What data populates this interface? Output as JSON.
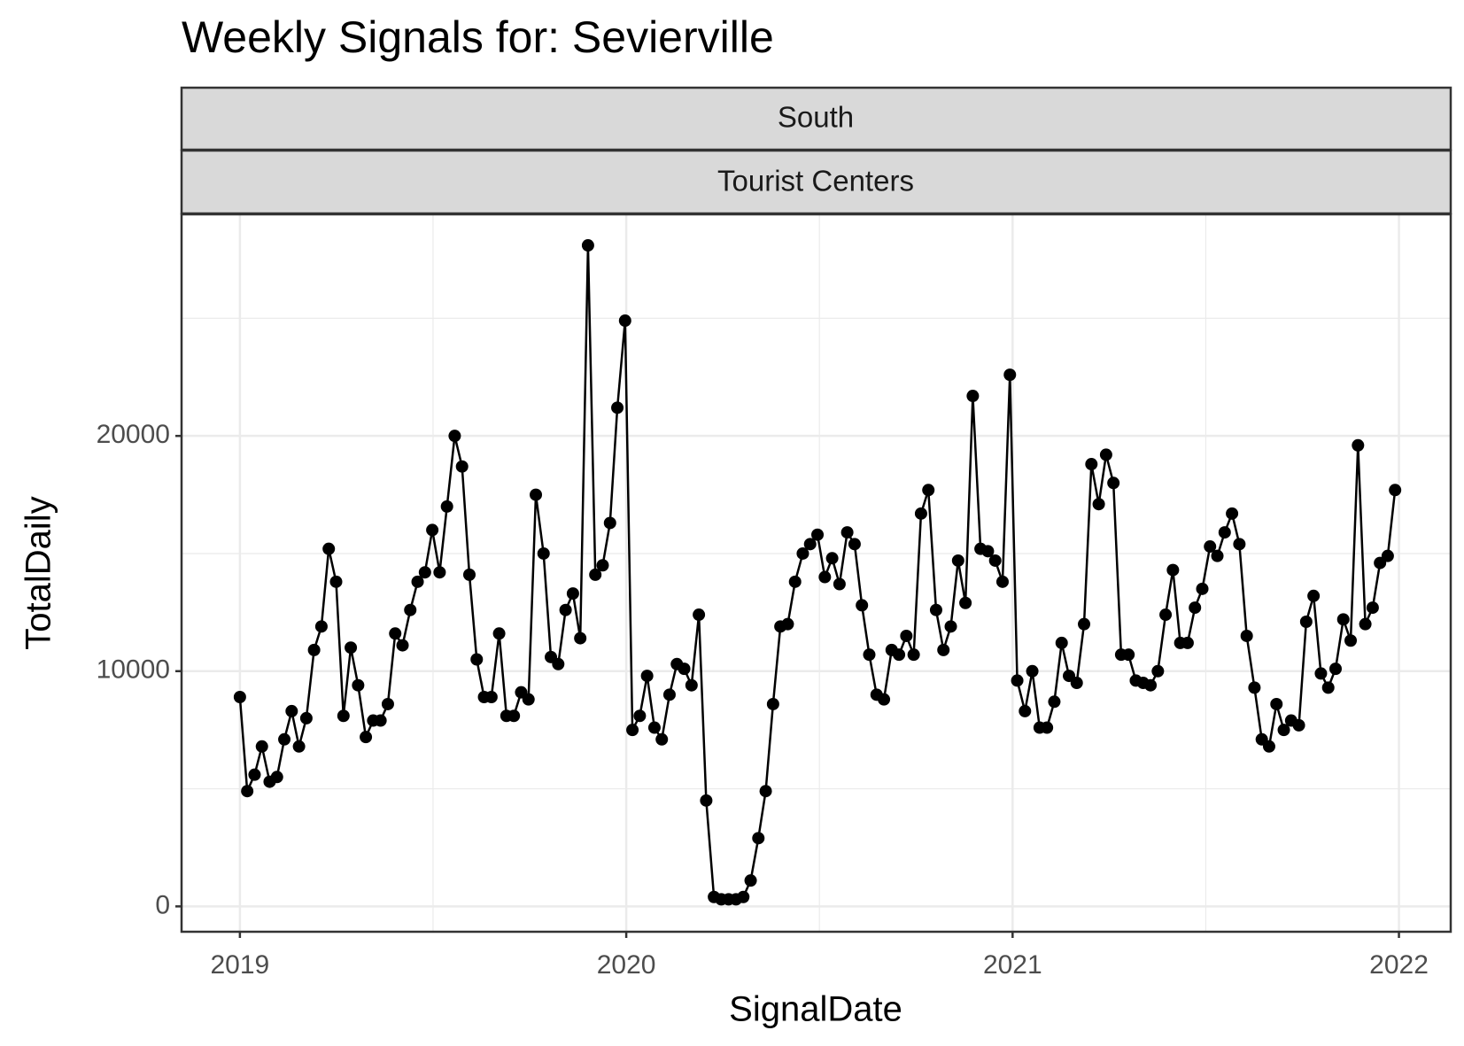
{
  "chart_data": {
    "type": "line",
    "title": "Weekly Signals for: Sevierville",
    "facets": [
      "South",
      "Tourist Centers"
    ],
    "x_label": "SignalDate",
    "y_label": "TotalDaily",
    "color": "#000000",
    "grid": true,
    "xlim": [
      2018.849,
      2022.134
    ],
    "xticks": [
      2019,
      2020,
      2021,
      2022
    ],
    "ylim": [
      -1078,
      29420
    ],
    "yticks": [
      0,
      10000,
      20000
    ],
    "x": [
      2019.0,
      2019.019,
      2019.038,
      2019.057,
      2019.077,
      2019.096,
      2019.115,
      2019.134,
      2019.153,
      2019.172,
      2019.192,
      2019.211,
      2019.23,
      2019.249,
      2019.268,
      2019.287,
      2019.306,
      2019.326,
      2019.345,
      2019.364,
      2019.383,
      2019.402,
      2019.421,
      2019.441,
      2019.46,
      2019.479,
      2019.498,
      2019.517,
      2019.536,
      2019.556,
      2019.575,
      2019.594,
      2019.613,
      2019.632,
      2019.651,
      2019.671,
      2019.69,
      2019.709,
      2019.728,
      2019.747,
      2019.766,
      2019.786,
      2019.805,
      2019.824,
      2019.843,
      2019.862,
      2019.881,
      2019.901,
      2019.92,
      2019.939,
      2019.958,
      2019.977,
      2019.997,
      2020.016,
      2020.035,
      2020.054,
      2020.073,
      2020.092,
      2020.112,
      2020.131,
      2020.15,
      2020.169,
      2020.188,
      2020.207,
      2020.227,
      2020.246,
      2020.265,
      2020.284,
      2020.303,
      2020.322,
      2020.342,
      2020.361,
      2020.38,
      2020.399,
      2020.418,
      2020.437,
      2020.457,
      2020.476,
      2020.495,
      2020.514,
      2020.533,
      2020.552,
      2020.572,
      2020.591,
      2020.61,
      2020.629,
      2020.648,
      2020.667,
      2020.687,
      2020.706,
      2020.725,
      2020.744,
      2020.763,
      2020.782,
      2020.802,
      2020.821,
      2020.84,
      2020.859,
      2020.878,
      2020.897,
      2020.917,
      2020.936,
      2020.955,
      2020.974,
      2020.993,
      2021.012,
      2021.032,
      2021.051,
      2021.07,
      2021.089,
      2021.108,
      2021.127,
      2021.146,
      2021.166,
      2021.185,
      2021.204,
      2021.223,
      2021.242,
      2021.261,
      2021.281,
      2021.3,
      2021.319,
      2021.338,
      2021.357,
      2021.376,
      2021.396,
      2021.415,
      2021.434,
      2021.453,
      2021.472,
      2021.491,
      2021.511,
      2021.53,
      2021.549,
      2021.568,
      2021.587,
      2021.606,
      2021.626,
      2021.645,
      2021.664,
      2021.683,
      2021.702,
      2021.721,
      2021.741,
      2021.76,
      2021.779,
      2021.798,
      2021.817,
      2021.836,
      2021.856,
      2021.875,
      2021.894,
      2021.913,
      2021.932,
      2021.951,
      2021.971,
      2021.99
    ],
    "values": [
      8900,
      4900,
      5600,
      6800,
      5300,
      5500,
      7100,
      8300,
      6800,
      8000,
      10900,
      11900,
      15200,
      13800,
      8100,
      11000,
      9400,
      7200,
      7900,
      7900,
      8600,
      11600,
      11100,
      12600,
      13800,
      14200,
      16000,
      14200,
      17000,
      20000,
      18700,
      14100,
      10500,
      8900,
      8900,
      11600,
      8100,
      8100,
      9100,
      8800,
      17500,
      15000,
      10600,
      10300,
      12600,
      13300,
      11400,
      28100,
      14100,
      14500,
      16300,
      21200,
      24900,
      7500,
      8100,
      9800,
      7600,
      7100,
      9000,
      10300,
      10100,
      9400,
      12400,
      4500,
      400,
      300,
      300,
      300,
      400,
      1100,
      2900,
      4900,
      8600,
      11900,
      12000,
      13800,
      15000,
      15400,
      15800,
      14000,
      14800,
      13700,
      15900,
      15400,
      12800,
      10700,
      9000,
      8800,
      10900,
      10700,
      11500,
      10700,
      16700,
      17700,
      12600,
      10900,
      11900,
      14700,
      12900,
      21700,
      15200,
      15100,
      14700,
      13800,
      22600,
      9600,
      8300,
      10000,
      7600,
      7600,
      8700,
      11200,
      9800,
      9500,
      12000,
      18800,
      17100,
      19200,
      18000,
      10700,
      10700,
      9600,
      9500,
      9400,
      10000,
      12400,
      14300,
      11200,
      11200,
      12700,
      13500,
      15300,
      14900,
      15900,
      16700,
      15400,
      11500,
      9300,
      7100,
      6800,
      8600,
      7500,
      7900,
      7700,
      12100,
      13200,
      9900,
      9300,
      10100,
      12200,
      11300,
      19600,
      12000,
      12700,
      14600,
      14900,
      17700
    ]
  }
}
